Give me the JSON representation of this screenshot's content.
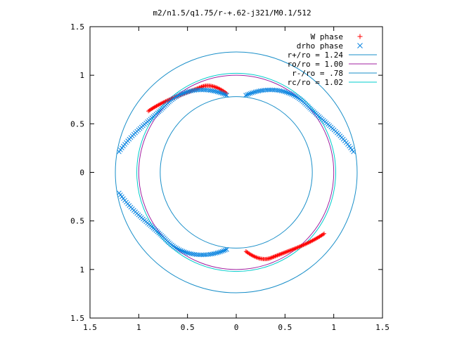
{
  "chart_data": {
    "type": "scatter",
    "title": "m2/n1.5/q1.75/r-+.62-j321/M0.1/512",
    "xlim": [
      -1.5,
      1.5
    ],
    "ylim": [
      -1.5,
      1.5
    ],
    "x_ticks": [
      {
        "value": -1.5,
        "label": "1.5"
      },
      {
        "value": -1.0,
        "label": "1"
      },
      {
        "value": -0.5,
        "label": "0.5"
      },
      {
        "value": 0,
        "label": "0"
      },
      {
        "value": 0.5,
        "label": "0.5"
      },
      {
        "value": 1.0,
        "label": "1"
      },
      {
        "value": 1.5,
        "label": "1.5"
      }
    ],
    "y_ticks": [
      {
        "value": 1.5,
        "label": "1.5"
      },
      {
        "value": 1.0,
        "label": "1"
      },
      {
        "value": 0.5,
        "label": "0.5"
      },
      {
        "value": 0,
        "label": "0"
      },
      {
        "value": -0.5,
        "label": "0.5"
      },
      {
        "value": -1.0,
        "label": "1"
      },
      {
        "value": -1.5,
        "label": "1.5"
      }
    ],
    "grid": false,
    "legend_position": "top-right",
    "series": [
      {
        "name": "W phase",
        "marker": "plus",
        "color": "#ff0000",
        "arcs": [
          {
            "angle_start": 145,
            "angle_end": 97,
            "r_start": 1.1,
            "r_end": 0.82,
            "r_peak": 0.95,
            "peak_angle": 112
          },
          {
            "angle_start": -83,
            "angle_end": -35,
            "r_start": 0.82,
            "r_end": 1.1,
            "r_peak": 0.95,
            "peak_angle": -68
          }
        ]
      },
      {
        "name": "drho phase",
        "marker": "cross",
        "color": "#0a84e0",
        "arcs": [
          {
            "angle_start": 83,
            "angle_end": 10,
            "r_start": 0.8,
            "r_end": 1.22,
            "r_peak": 1.0,
            "peak_angle": 45
          },
          {
            "angle_start": 170,
            "angle_end": 97,
            "r_start": 1.22,
            "r_end": 0.8,
            "r_peak": 1.0,
            "peak_angle": 135
          },
          {
            "angle_start": 190,
            "angle_end": 263,
            "r_start": 1.22,
            "r_end": 0.8,
            "r_peak": 1.0,
            "peak_angle": 225
          }
        ]
      },
      {
        "name": "r+/ro = 1.24",
        "type": "circle",
        "radius": 1.24,
        "color": "#1a8fc9"
      },
      {
        "name": "ro/ro = 1.00",
        "type": "circle",
        "radius": 1.0,
        "color": "#a020a0"
      },
      {
        "name": "r-/ro = .78",
        "type": "circle",
        "radius": 0.78,
        "color": "#1a8fc9"
      },
      {
        "name": "rc/ro = 1.02",
        "type": "circle",
        "radius": 1.02,
        "color": "#00cccc"
      }
    ]
  }
}
